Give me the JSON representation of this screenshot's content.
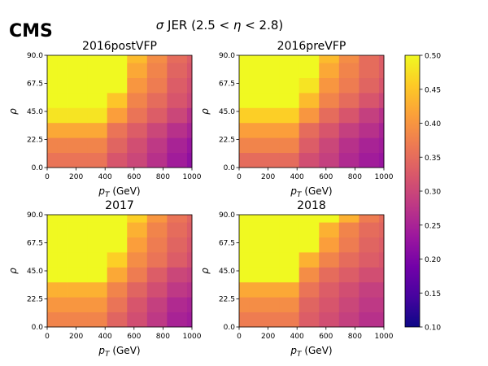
{
  "header": {
    "experiment_label": "CMS",
    "figure_title_sigma": "σ",
    "figure_title_main": " JER (2.5 < ",
    "figure_title_eta": "η",
    "figure_title_lt": " < 2.8)"
  },
  "chart_data": {
    "type": "heatmap",
    "xlabel_sym": "p",
    "xlabel_sub": "T",
    "xlabel_unit": " (GeV)",
    "ylabel": "ρ",
    "x_ticks": [
      "0",
      "200",
      "400",
      "600",
      "800",
      "1000"
    ],
    "y_ticks": [
      "0.0",
      "22.5",
      "45.0",
      "67.5",
      "90.0"
    ],
    "xlim": [
      0,
      1000
    ],
    "ylim": [
      0,
      90
    ],
    "x_edges": [
      0,
      69,
      138,
      276,
      414,
      552,
      690,
      828,
      966,
      1000
    ],
    "y_edges": [
      0,
      12,
      24,
      36,
      48,
      60,
      72,
      84,
      90
    ],
    "colorscale": "plasma",
    "colorbar": {
      "range": [
        0.1,
        0.5
      ],
      "ticks": [
        "0.10",
        "0.15",
        "0.20",
        "0.25",
        "0.30",
        "0.35",
        "0.40",
        "0.45",
        "0.50"
      ]
    },
    "panels": [
      {
        "title": "2016postVFP",
        "z": [
          [
            0.36,
            0.36,
            0.36,
            0.36,
            0.32,
            0.3,
            0.27,
            0.24,
            0.22
          ],
          [
            0.38,
            0.38,
            0.38,
            0.38,
            0.34,
            0.31,
            0.28,
            0.25,
            0.23
          ],
          [
            0.42,
            0.42,
            0.42,
            0.42,
            0.36,
            0.33,
            0.3,
            0.27,
            0.25
          ],
          [
            0.48,
            0.48,
            0.48,
            0.48,
            0.41,
            0.36,
            0.33,
            0.3,
            0.27
          ],
          [
            0.5,
            0.5,
            0.5,
            0.5,
            0.45,
            0.38,
            0.35,
            0.32,
            0.3
          ],
          [
            0.5,
            0.5,
            0.5,
            0.5,
            0.5,
            0.4,
            0.37,
            0.33,
            0.31
          ],
          [
            0.5,
            0.5,
            0.5,
            0.5,
            0.5,
            0.42,
            0.38,
            0.34,
            0.32
          ],
          [
            0.5,
            0.5,
            0.5,
            0.5,
            0.5,
            0.44,
            0.39,
            0.35,
            0.33
          ]
        ]
      },
      {
        "title": "2016preVFP",
        "z": [
          [
            0.35,
            0.35,
            0.35,
            0.35,
            0.31,
            0.29,
            0.26,
            0.24,
            0.23
          ],
          [
            0.38,
            0.38,
            0.38,
            0.38,
            0.33,
            0.3,
            0.27,
            0.25,
            0.24
          ],
          [
            0.41,
            0.41,
            0.41,
            0.41,
            0.35,
            0.32,
            0.29,
            0.27,
            0.25
          ],
          [
            0.46,
            0.46,
            0.46,
            0.46,
            0.4,
            0.35,
            0.32,
            0.29,
            0.27
          ],
          [
            0.5,
            0.5,
            0.5,
            0.5,
            0.44,
            0.38,
            0.35,
            0.32,
            0.3
          ],
          [
            0.5,
            0.5,
            0.5,
            0.5,
            0.48,
            0.4,
            0.37,
            0.34,
            0.32
          ],
          [
            0.5,
            0.5,
            0.5,
            0.5,
            0.5,
            0.42,
            0.38,
            0.35,
            0.33
          ],
          [
            0.5,
            0.5,
            0.5,
            0.5,
            0.5,
            0.44,
            0.39,
            0.35,
            0.33
          ]
        ]
      },
      {
        "title": "2017",
        "z": [
          [
            0.38,
            0.38,
            0.38,
            0.38,
            0.34,
            0.31,
            0.28,
            0.25,
            0.24
          ],
          [
            0.4,
            0.4,
            0.4,
            0.4,
            0.36,
            0.32,
            0.29,
            0.26,
            0.25
          ],
          [
            0.43,
            0.43,
            0.43,
            0.43,
            0.38,
            0.34,
            0.31,
            0.28,
            0.27
          ],
          [
            0.5,
            0.5,
            0.5,
            0.5,
            0.42,
            0.37,
            0.33,
            0.3,
            0.29
          ],
          [
            0.5,
            0.5,
            0.5,
            0.5,
            0.46,
            0.39,
            0.36,
            0.33,
            0.31
          ],
          [
            0.5,
            0.5,
            0.5,
            0.5,
            0.5,
            0.41,
            0.37,
            0.34,
            0.32
          ],
          [
            0.5,
            0.5,
            0.5,
            0.5,
            0.5,
            0.43,
            0.38,
            0.35,
            0.33
          ],
          [
            0.5,
            0.5,
            0.5,
            0.5,
            0.5,
            0.46,
            0.4,
            0.36,
            0.34
          ]
        ]
      },
      {
        "title": "2018",
        "z": [
          [
            0.37,
            0.37,
            0.37,
            0.37,
            0.33,
            0.31,
            0.29,
            0.27,
            0.27
          ],
          [
            0.39,
            0.39,
            0.39,
            0.39,
            0.34,
            0.32,
            0.3,
            0.28,
            0.28
          ],
          [
            0.42,
            0.42,
            0.42,
            0.42,
            0.36,
            0.33,
            0.31,
            0.29,
            0.29
          ],
          [
            0.5,
            0.5,
            0.5,
            0.5,
            0.39,
            0.35,
            0.33,
            0.31,
            0.31
          ],
          [
            0.5,
            0.5,
            0.5,
            0.5,
            0.43,
            0.38,
            0.35,
            0.33,
            0.32
          ],
          [
            0.5,
            0.5,
            0.5,
            0.5,
            0.5,
            0.41,
            0.37,
            0.34,
            0.33
          ],
          [
            0.5,
            0.5,
            0.5,
            0.5,
            0.5,
            0.43,
            0.38,
            0.35,
            0.34
          ],
          [
            0.5,
            0.5,
            0.5,
            0.5,
            0.5,
            0.5,
            0.43,
            0.37,
            0.35
          ]
        ]
      }
    ]
  }
}
